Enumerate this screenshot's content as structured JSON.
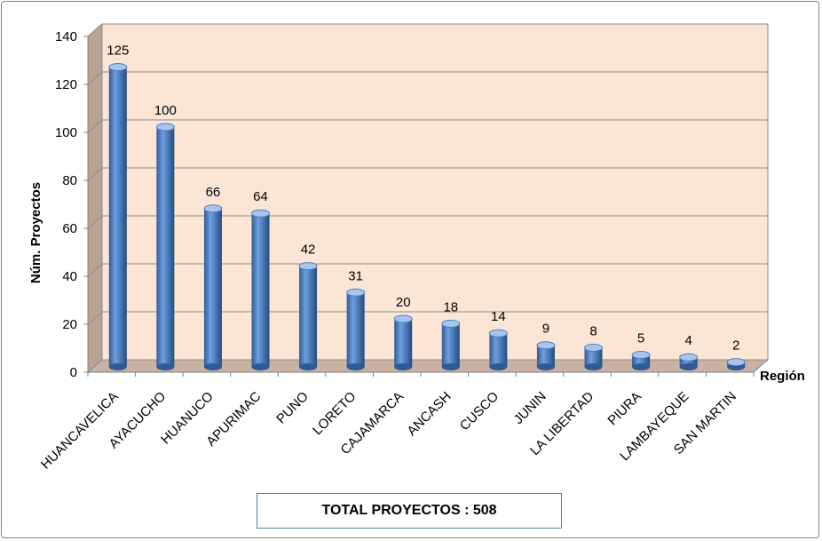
{
  "chart_data": {
    "type": "bar",
    "categories": [
      "HUANCAVELICA",
      "AYACUCHO",
      "HUANUCO",
      "APURIMAC",
      "PUNO",
      "LORETO",
      "CAJAMARCA",
      "ANCASH",
      "CUSCO",
      "JUNIN",
      "LA LIBERTAD",
      "PIURA",
      "LAMBAYEQUE",
      "SAN MARTIN"
    ],
    "values": [
      125,
      100,
      66,
      64,
      42,
      31,
      20,
      18,
      14,
      9,
      8,
      5,
      4,
      2
    ],
    "xlabel": "Región",
    "ylabel": "Núm. Proyectos",
    "ylim": [
      0,
      140
    ],
    "yticks": [
      0,
      20,
      40,
      60,
      80,
      100,
      120,
      140
    ],
    "grid": true,
    "legend": "none"
  },
  "summary": {
    "total_label": "TOTAL PROYECTOS : 508"
  },
  "colors": {
    "bar": "#4f81bd",
    "bar_dark": "#2f5a96",
    "bar_light": "#a9c4ee",
    "back_wall": "#fbe6d6",
    "side_wall": "#b8a497",
    "floor": "#c7b2a3",
    "gridline": "#8c8c8c"
  }
}
